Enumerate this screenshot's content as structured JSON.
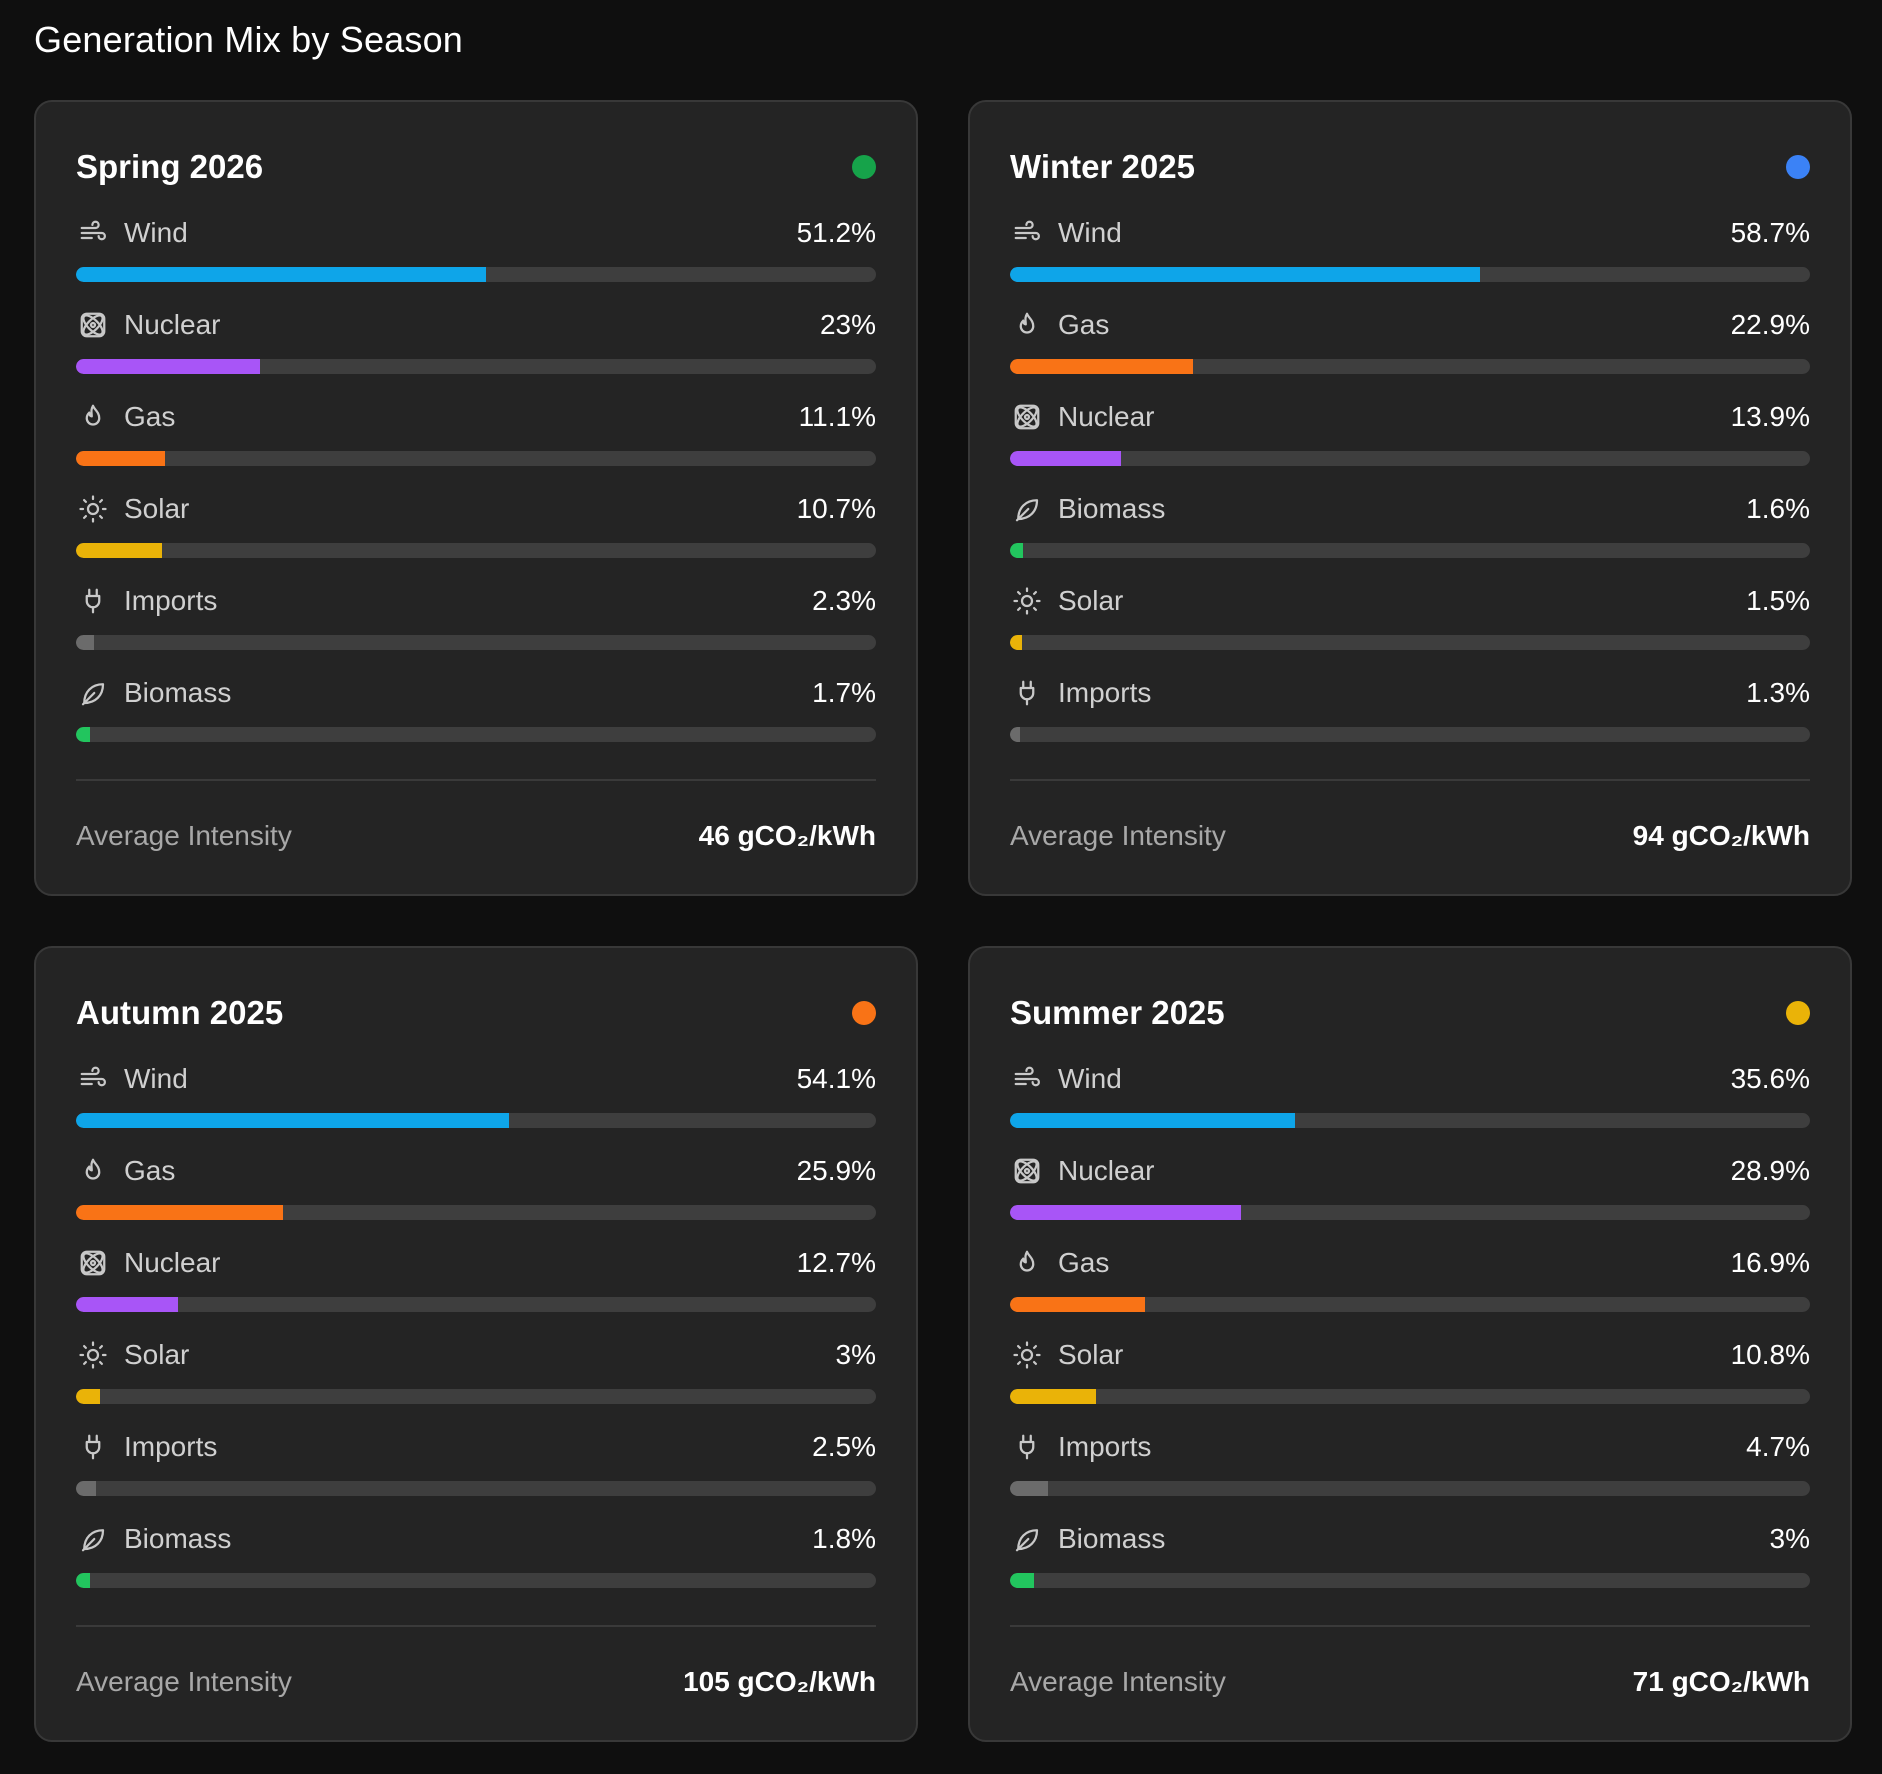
{
  "page": {
    "title": "Generation Mix by Season"
  },
  "footer_label": "Average Intensity",
  "colors": {
    "Wind": "#0ea5e9",
    "Nuclear": "#a855f7",
    "Gas": "#f97316",
    "Solar": "#eab308",
    "Imports": "#6b6b6b",
    "Biomass": "#22c55e"
  },
  "icons": {
    "Wind": "wind-icon",
    "Nuclear": "atom-icon",
    "Gas": "flame-icon",
    "Solar": "sun-icon",
    "Imports": "plug-icon",
    "Biomass": "leaf-icon"
  },
  "cards": [
    {
      "title": "Spring 2026",
      "dot_color": "#16a34a",
      "intensity": "46 gCO₂/kWh",
      "rows": [
        {
          "label": "Wind",
          "value": "51.2%",
          "pct": 51.2
        },
        {
          "label": "Nuclear",
          "value": "23%",
          "pct": 23
        },
        {
          "label": "Gas",
          "value": "11.1%",
          "pct": 11.1
        },
        {
          "label": "Solar",
          "value": "10.7%",
          "pct": 10.7
        },
        {
          "label": "Imports",
          "value": "2.3%",
          "pct": 2.3
        },
        {
          "label": "Biomass",
          "value": "1.7%",
          "pct": 1.7
        }
      ]
    },
    {
      "title": "Winter 2025",
      "dot_color": "#3b82f6",
      "intensity": "94 gCO₂/kWh",
      "rows": [
        {
          "label": "Wind",
          "value": "58.7%",
          "pct": 58.7
        },
        {
          "label": "Gas",
          "value": "22.9%",
          "pct": 22.9
        },
        {
          "label": "Nuclear",
          "value": "13.9%",
          "pct": 13.9
        },
        {
          "label": "Biomass",
          "value": "1.6%",
          "pct": 1.6
        },
        {
          "label": "Solar",
          "value": "1.5%",
          "pct": 1.5
        },
        {
          "label": "Imports",
          "value": "1.3%",
          "pct": 1.3
        }
      ]
    },
    {
      "title": "Autumn 2025",
      "dot_color": "#f97316",
      "intensity": "105 gCO₂/kWh",
      "rows": [
        {
          "label": "Wind",
          "value": "54.1%",
          "pct": 54.1
        },
        {
          "label": "Gas",
          "value": "25.9%",
          "pct": 25.9
        },
        {
          "label": "Nuclear",
          "value": "12.7%",
          "pct": 12.7
        },
        {
          "label": "Solar",
          "value": "3%",
          "pct": 3
        },
        {
          "label": "Imports",
          "value": "2.5%",
          "pct": 2.5
        },
        {
          "label": "Biomass",
          "value": "1.8%",
          "pct": 1.8
        }
      ]
    },
    {
      "title": "Summer 2025",
      "dot_color": "#eab308",
      "intensity": "71 gCO₂/kWh",
      "rows": [
        {
          "label": "Wind",
          "value": "35.6%",
          "pct": 35.6
        },
        {
          "label": "Nuclear",
          "value": "28.9%",
          "pct": 28.9
        },
        {
          "label": "Gas",
          "value": "16.9%",
          "pct": 16.9
        },
        {
          "label": "Solar",
          "value": "10.8%",
          "pct": 10.8
        },
        {
          "label": "Imports",
          "value": "4.7%",
          "pct": 4.7
        },
        {
          "label": "Biomass",
          "value": "3%",
          "pct": 3
        }
      ]
    }
  ]
}
